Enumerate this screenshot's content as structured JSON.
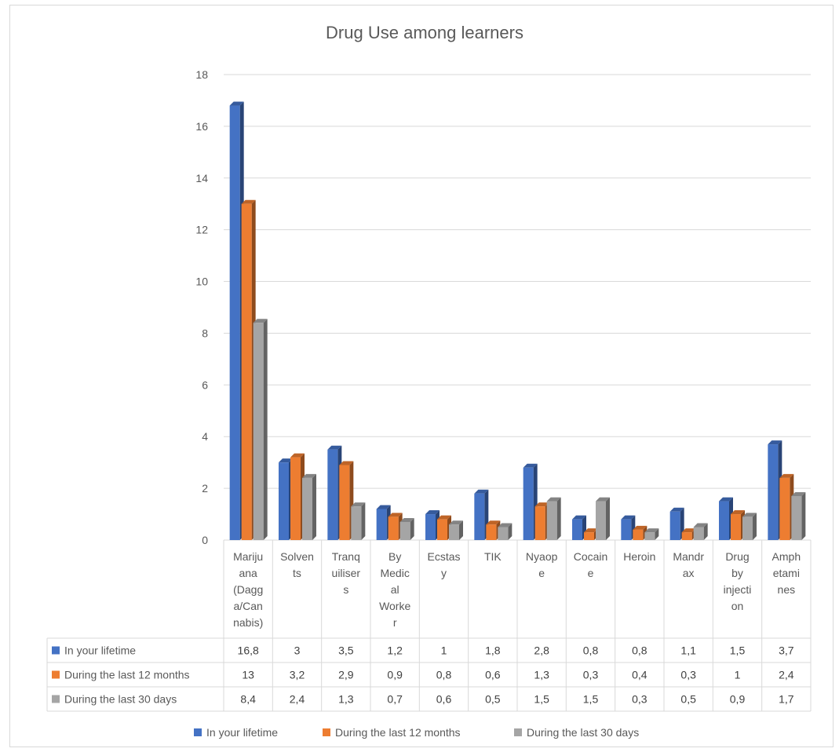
{
  "chart_data": {
    "type": "bar",
    "title": "Drug Use among learners",
    "xlabel": "",
    "ylabel": "",
    "ylim": [
      0,
      18
    ],
    "yticks": [
      0,
      2,
      4,
      6,
      8,
      10,
      12,
      14,
      16,
      18
    ],
    "grid": true,
    "legend_position": "bottom",
    "data_table": true,
    "categories": [
      "Marijuana (Dagga/Cannabis)",
      "Solvents",
      "Tranquilisers",
      "By Medical Worker",
      "Ecstasy",
      "TIK",
      "Nyaope",
      "Cocaine",
      "Heroin",
      "Mandrax",
      "Drug by injection",
      "Amphetamines"
    ],
    "category_lines": [
      [
        "Mariju",
        "ana",
        "(Dagg",
        "a/Can",
        "nabis)"
      ],
      [
        "Solven",
        "ts"
      ],
      [
        "Tranq",
        "uiliser",
        "s"
      ],
      [
        "By",
        "Medic",
        "al",
        "Worke",
        "r"
      ],
      [
        "Ecstas",
        "y"
      ],
      [
        "TIK"
      ],
      [
        "Nyaop",
        "e"
      ],
      [
        "Cocain",
        "e"
      ],
      [
        "Heroin"
      ],
      [
        "Mandr",
        "ax"
      ],
      [
        "Drug",
        "by",
        "injecti",
        "on"
      ],
      [
        "Amph",
        "etami",
        "nes"
      ]
    ],
    "series": [
      {
        "name": "In your lifetime",
        "color": "#4472c4",
        "values": [
          16.8,
          3,
          3.5,
          1.2,
          1,
          1.8,
          2.8,
          0.8,
          0.8,
          1.1,
          1.5,
          3.7
        ],
        "labels": [
          "16,8",
          "3",
          "3,5",
          "1,2",
          "1",
          "1,8",
          "2,8",
          "0,8",
          "0,8",
          "1,1",
          "1,5",
          "3,7"
        ]
      },
      {
        "name": "During the last 12 months",
        "color": "#ed7d31",
        "values": [
          13,
          3.2,
          2.9,
          0.9,
          0.8,
          0.6,
          1.3,
          0.3,
          0.4,
          0.3,
          1,
          2.4
        ],
        "labels": [
          "13",
          "3,2",
          "2,9",
          "0,9",
          "0,8",
          "0,6",
          "1,3",
          "0,3",
          "0,4",
          "0,3",
          "1",
          "2,4"
        ]
      },
      {
        "name": "During the last 30 days",
        "color": "#a5a5a5",
        "values": [
          8.4,
          2.4,
          1.3,
          0.7,
          0.6,
          0.5,
          1.5,
          1.5,
          0.3,
          0.5,
          0.9,
          1.7
        ],
        "labels": [
          "8,4",
          "2,4",
          "1,3",
          "0,7",
          "0,6",
          "0,5",
          "1,5",
          "1,5",
          "0,3",
          "0,5",
          "0,9",
          "1,7"
        ]
      }
    ]
  }
}
